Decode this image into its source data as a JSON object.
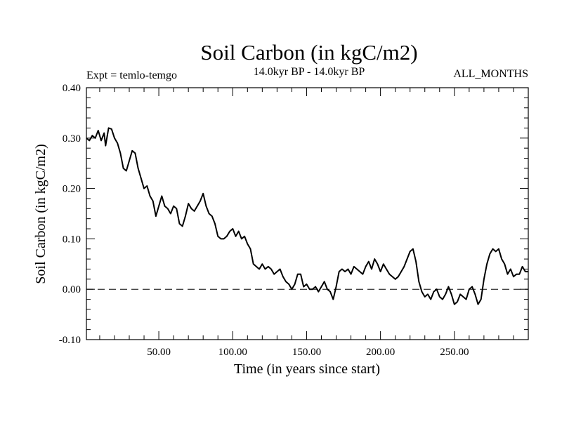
{
  "chart_data": {
    "type": "line",
    "title": "Soil Carbon (in kgC/m2)",
    "subtitle": "14.0kyr BP - 14.0kyr BP",
    "left_label": "Expt = temlo-temgo",
    "right_label": "ALL_MONTHS",
    "xlabel": "Time (in years since start)",
    "ylabel": "Soil Carbon (in kgC/m2)",
    "xlim": [
      1,
      300
    ],
    "ylim": [
      -0.1,
      0.4
    ],
    "x_ticks": [
      50,
      100,
      150,
      200,
      250
    ],
    "x_tick_labels": [
      "50.00",
      "100.00",
      "150.00",
      "200.00",
      "250.00"
    ],
    "y_ticks": [
      -0.1,
      0.0,
      0.1,
      0.2,
      0.3,
      0.4
    ],
    "y_tick_labels": [
      "-0.10",
      "0.00",
      "0.10",
      "0.20",
      "0.30",
      "0.40"
    ],
    "reference_line": {
      "y": 0.0,
      "style": "dashed"
    },
    "line_color": "#000000",
    "series": [
      {
        "name": "Soil Carbon",
        "x": [
          1,
          3,
          5,
          7,
          9,
          11,
          13,
          14,
          16,
          18,
          20,
          22,
          24,
          26,
          28,
          30,
          32,
          34,
          36,
          38,
          40,
          42,
          44,
          46,
          48,
          50,
          52,
          54,
          56,
          58,
          60,
          62,
          64,
          66,
          68,
          70,
          72,
          74,
          76,
          78,
          80,
          82,
          84,
          86,
          88,
          90,
          92,
          94,
          96,
          98,
          100,
          102,
          104,
          106,
          108,
          110,
          112,
          114,
          116,
          118,
          120,
          122,
          124,
          126,
          128,
          130,
          132,
          134,
          136,
          138,
          140,
          142,
          144,
          146,
          148,
          150,
          152,
          154,
          156,
          158,
          160,
          162,
          164,
          166,
          168,
          170,
          172,
          174,
          176,
          178,
          180,
          182,
          184,
          186,
          188,
          190,
          192,
          194,
          196,
          198,
          200,
          202,
          204,
          206,
          208,
          210,
          212,
          214,
          216,
          218,
          220,
          222,
          224,
          226,
          228,
          230,
          232,
          234,
          236,
          238,
          240,
          242,
          244,
          246,
          248,
          250,
          252,
          254,
          256,
          258,
          260,
          262,
          264,
          266,
          268,
          270,
          272,
          274,
          276,
          278,
          280,
          282,
          284,
          286,
          288,
          290,
          292,
          294,
          296,
          298,
          300
        ],
        "values": [
          0.3,
          0.295,
          0.305,
          0.3,
          0.315,
          0.295,
          0.31,
          0.285,
          0.32,
          0.318,
          0.3,
          0.29,
          0.27,
          0.24,
          0.235,
          0.255,
          0.275,
          0.27,
          0.24,
          0.22,
          0.2,
          0.205,
          0.185,
          0.175,
          0.145,
          0.165,
          0.185,
          0.165,
          0.16,
          0.15,
          0.165,
          0.16,
          0.13,
          0.125,
          0.145,
          0.17,
          0.16,
          0.155,
          0.165,
          0.175,
          0.19,
          0.165,
          0.15,
          0.145,
          0.13,
          0.105,
          0.1,
          0.1,
          0.105,
          0.115,
          0.12,
          0.105,
          0.115,
          0.1,
          0.105,
          0.09,
          0.08,
          0.05,
          0.045,
          0.04,
          0.05,
          0.04,
          0.045,
          0.04,
          0.03,
          0.035,
          0.04,
          0.025,
          0.015,
          0.01,
          0.0,
          0.01,
          0.03,
          0.03,
          0.005,
          0.01,
          0.0,
          0.0,
          0.005,
          -0.005,
          0.005,
          0.015,
          0.0,
          -0.005,
          -0.02,
          0.005,
          0.035,
          0.04,
          0.035,
          0.04,
          0.03,
          0.045,
          0.04,
          0.035,
          0.03,
          0.045,
          0.055,
          0.04,
          0.06,
          0.05,
          0.035,
          0.05,
          0.04,
          0.03,
          0.025,
          0.02,
          0.025,
          0.035,
          0.045,
          0.06,
          0.075,
          0.08,
          0.055,
          0.015,
          -0.005,
          -0.015,
          -0.01,
          -0.02,
          -0.005,
          0.0,
          -0.015,
          -0.02,
          -0.01,
          0.005,
          -0.01,
          -0.03,
          -0.025,
          -0.01,
          -0.015,
          -0.02,
          0.0,
          0.005,
          -0.01,
          -0.03,
          -0.02,
          0.02,
          0.05,
          0.07,
          0.08,
          0.075,
          0.08,
          0.06,
          0.05,
          0.03,
          0.04,
          0.025,
          0.03,
          0.03,
          0.045,
          0.035,
          0.035
        ]
      }
    ]
  }
}
